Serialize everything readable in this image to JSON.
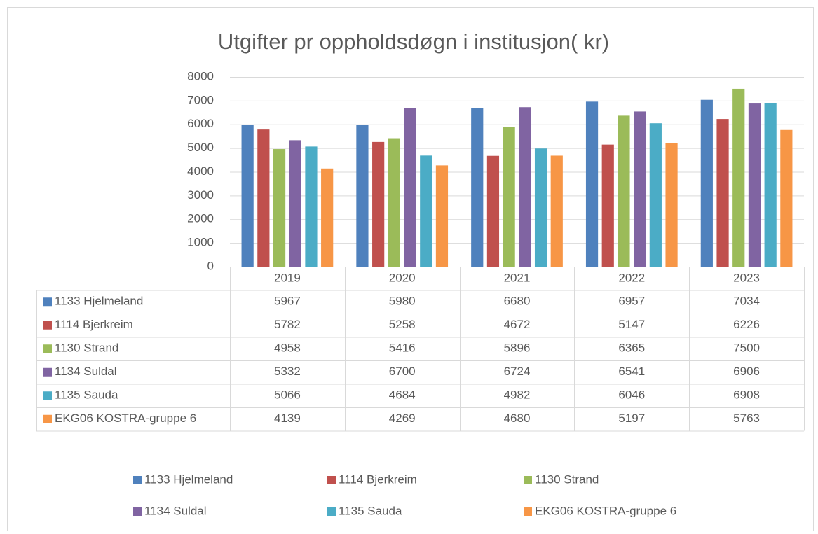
{
  "chart_data": {
    "type": "bar",
    "title": "Utgifter pr oppholdsdøgn i institusjon( kr)",
    "categories": [
      "2019",
      "2020",
      "2021",
      "2022",
      "2023"
    ],
    "series": [
      {
        "name": "1133 Hjelmeland",
        "color": "#4f81bd",
        "values": [
          5967,
          5980,
          6680,
          6957,
          7034
        ]
      },
      {
        "name": "1114 Bjerkreim",
        "color": "#c0504d",
        "values": [
          5782,
          5258,
          4672,
          5147,
          6226
        ]
      },
      {
        "name": "1130 Strand",
        "color": "#9bbb59",
        "values": [
          4958,
          5416,
          5896,
          6365,
          7500
        ]
      },
      {
        "name": "1134 Suldal",
        "color": "#8064a2",
        "values": [
          5332,
          6700,
          6724,
          6541,
          6906
        ]
      },
      {
        "name": "1135 Sauda",
        "color": "#4bacc6",
        "values": [
          5066,
          4684,
          4982,
          6046,
          6908
        ]
      },
      {
        "name": "EKG06 KOSTRA-gruppe 6",
        "color": "#f79646",
        "values": [
          4139,
          4269,
          4680,
          5197,
          5763
        ]
      }
    ],
    "ylim": [
      0,
      8000
    ],
    "yticks": [
      0,
      1000,
      2000,
      3000,
      4000,
      5000,
      6000,
      7000,
      8000
    ],
    "grid": true,
    "legend": "bottom",
    "data_table": true
  }
}
